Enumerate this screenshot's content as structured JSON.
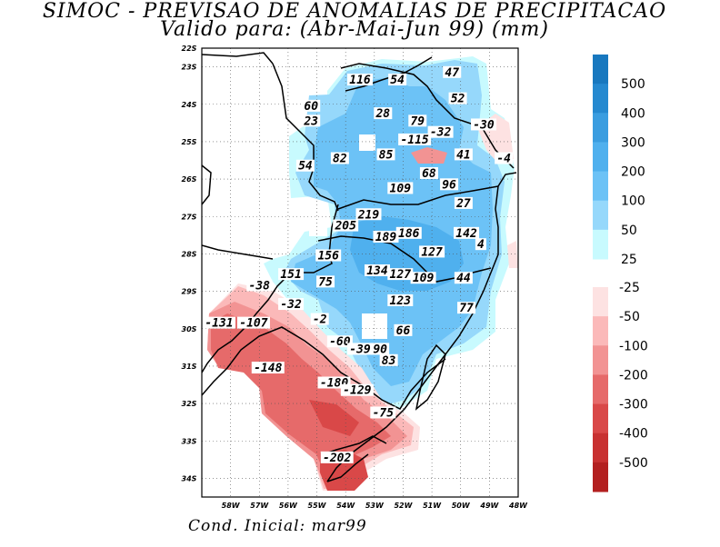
{
  "title_line1": "SIMOC - PREVISAO DE ANOMALIAS DE PRECIPITACAO",
  "title_line2": "Valido para: (Abr-Mai-Jun 99) (mm)",
  "footer": "Cond. Inicial: mar99",
  "map": {
    "lon_range": [
      -59,
      -48
    ],
    "lat_range": [
      -34.5,
      -22.5
    ],
    "lon_ticks": [
      "58W",
      "57W",
      "56W",
      "55W",
      "54W",
      "53W",
      "52W",
      "51W",
      "50W",
      "49W",
      "48W"
    ],
    "lat_ticks": [
      "22S",
      "23S",
      "24S",
      "25S",
      "26S",
      "27S",
      "28S",
      "29S",
      "30S",
      "31S",
      "32S",
      "33S",
      "34S"
    ],
    "grid": "dotted",
    "contour_labels": [
      {
        "text": "116",
        "lon": -53.5,
        "lat": -23.4
      },
      {
        "text": "54",
        "lon": -52.2,
        "lat": -23.4
      },
      {
        "text": "47",
        "lon": -50.3,
        "lat": -23.2
      },
      {
        "text": "52",
        "lon": -50.1,
        "lat": -23.9
      },
      {
        "text": "60",
        "lon": -55.2,
        "lat": -24.1
      },
      {
        "text": "23",
        "lon": -55.2,
        "lat": -24.5
      },
      {
        "text": "28",
        "lon": -52.7,
        "lat": -24.3
      },
      {
        "text": "79",
        "lon": -51.5,
        "lat": -24.5
      },
      {
        "text": "-32",
        "lon": -50.7,
        "lat": -24.8
      },
      {
        "text": "-30",
        "lon": -49.2,
        "lat": -24.6
      },
      {
        "text": "-115",
        "lon": -51.6,
        "lat": -25.0
      },
      {
        "text": "82",
        "lon": -54.2,
        "lat": -25.5
      },
      {
        "text": "85",
        "lon": -52.6,
        "lat": -25.4
      },
      {
        "text": "41",
        "lon": -49.9,
        "lat": -25.4
      },
      {
        "text": "54",
        "lon": -55.4,
        "lat": -25.7
      },
      {
        "text": "-4",
        "lon": -48.5,
        "lat": -25.5
      },
      {
        "text": "68",
        "lon": -51.1,
        "lat": -25.9
      },
      {
        "text": "96",
        "lon": -50.4,
        "lat": -26.2
      },
      {
        "text": "109",
        "lon": -52.1,
        "lat": -26.3
      },
      {
        "text": "27",
        "lon": -49.9,
        "lat": -26.7
      },
      {
        "text": "219",
        "lon": -53.2,
        "lat": -27.0
      },
      {
        "text": "205",
        "lon": -54.0,
        "lat": -27.3
      },
      {
        "text": "186",
        "lon": -51.8,
        "lat": -27.5
      },
      {
        "text": "189",
        "lon": -52.6,
        "lat": -27.6
      },
      {
        "text": "142",
        "lon": -49.8,
        "lat": -27.5
      },
      {
        "text": "127",
        "lon": -51.0,
        "lat": -28.0
      },
      {
        "text": "4",
        "lon": -49.3,
        "lat": -27.8
      },
      {
        "text": "156",
        "lon": -54.6,
        "lat": -28.1
      },
      {
        "text": "151",
        "lon": -55.9,
        "lat": -28.6
      },
      {
        "text": "134",
        "lon": -52.9,
        "lat": -28.5
      },
      {
        "text": "127",
        "lon": -52.1,
        "lat": -28.6
      },
      {
        "text": "109",
        "lon": -51.3,
        "lat": -28.7
      },
      {
        "text": "44",
        "lon": -49.9,
        "lat": -28.7
      },
      {
        "text": "75",
        "lon": -54.7,
        "lat": -28.8
      },
      {
        "text": "-38",
        "lon": -57.0,
        "lat": -28.9
      },
      {
        "text": "123",
        "lon": -52.1,
        "lat": -29.3
      },
      {
        "text": "-32",
        "lon": -55.9,
        "lat": -29.4
      },
      {
        "text": "77",
        "lon": -49.8,
        "lat": -29.5
      },
      {
        "text": "-2",
        "lon": -54.9,
        "lat": -29.8
      },
      {
        "text": "-131",
        "lon": -58.4,
        "lat": -29.9
      },
      {
        "text": "-107",
        "lon": -57.2,
        "lat": -29.9
      },
      {
        "text": "66",
        "lon": -52.0,
        "lat": -30.1
      },
      {
        "text": "-60",
        "lon": -54.2,
        "lat": -30.4
      },
      {
        "text": "-39",
        "lon": -53.5,
        "lat": -30.6
      },
      {
        "text": "90",
        "lon": -52.8,
        "lat": -30.6
      },
      {
        "text": "83",
        "lon": -52.5,
        "lat": -30.9
      },
      {
        "text": "-148",
        "lon": -56.7,
        "lat": -31.1
      },
      {
        "text": "-180",
        "lon": -54.4,
        "lat": -31.5
      },
      {
        "text": "-129",
        "lon": -53.6,
        "lat": -31.7
      },
      {
        "text": "-75",
        "lon": -52.7,
        "lat": -32.3
      },
      {
        "text": "-202",
        "lon": -54.3,
        "lat": -33.5
      }
    ]
  },
  "legend": {
    "positive": [
      {
        "label": "500",
        "color": "#1878bf"
      },
      {
        "label": "400",
        "color": "#2589d0"
      },
      {
        "label": "300",
        "color": "#3a9de0"
      },
      {
        "label": "200",
        "color": "#4fb0ee"
      },
      {
        "label": "100",
        "color": "#6cc2f6"
      },
      {
        "label": "50",
        "color": "#96d8fb"
      },
      {
        "label": "25",
        "color": "#c8fafe"
      }
    ],
    "negative": [
      {
        "label": "-25",
        "color": "#fde2e2"
      },
      {
        "label": "-50",
        "color": "#fbb9b9"
      },
      {
        "label": "-100",
        "color": "#f29393"
      },
      {
        "label": "-200",
        "color": "#e66a6a"
      },
      {
        "label": "-300",
        "color": "#d94848"
      },
      {
        "label": "-400",
        "color": "#c83131"
      },
      {
        "label": "-500",
        "color": "#b32020"
      }
    ]
  },
  "colors": {
    "pos_light": "#c8fafe",
    "pos_50": "#96d8fb",
    "pos_100": "#6cc2f6",
    "pos_200": "#4fb0ee",
    "neg_light": "#fde2e2",
    "neg_50": "#fbb9b9",
    "neg_100": "#f29393",
    "neg_200": "#e66a6a",
    "neg_300": "#d94848"
  }
}
